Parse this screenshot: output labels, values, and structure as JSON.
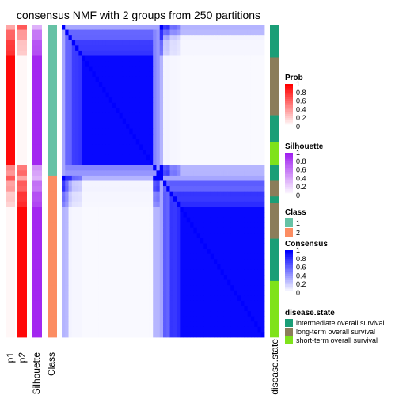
{
  "chart_data": {
    "type": "heatmap",
    "title": "consensus NMF with 2 groups from 250 partitions",
    "annotation_columns": [
      "p1",
      "p2",
      "Silhouette",
      "Class"
    ],
    "right_annotation": "disease.state",
    "class_blocks": [
      {
        "class": "1",
        "size_fraction": 0.485
      },
      {
        "class": "2",
        "size_fraction": 0.515
      }
    ],
    "disease_state_segments": [
      {
        "state": "intermediate overall survival",
        "size_fraction": 0.105
      },
      {
        "state": "long-term overall survival",
        "size_fraction": 0.185
      },
      {
        "state": "intermediate overall survival",
        "size_fraction": 0.085
      },
      {
        "state": "short-term overall survival",
        "size_fraction": 0.075
      },
      {
        "state": "intermediate overall survival",
        "size_fraction": 0.05
      },
      {
        "state": "long-term overall survival",
        "size_fraction": 0.05
      },
      {
        "state": "intermediate overall survival",
        "size_fraction": 0.02
      },
      {
        "state": "long-term overall survival",
        "size_fraction": 0.115
      },
      {
        "state": "intermediate overall survival",
        "size_fraction": 0.135
      },
      {
        "state": "short-term overall survival",
        "size_fraction": 0.18
      }
    ],
    "legends": {
      "prob": {
        "title": "Prob",
        "ticks": [
          "1",
          "0.8",
          "0.6",
          "0.4",
          "0.2",
          "0"
        ],
        "low": "#ffffff",
        "high": "#ff0000"
      },
      "silhouette": {
        "title": "Silhouette",
        "ticks": [
          "1",
          "0.8",
          "0.6",
          "0.4",
          "0.2",
          "0"
        ],
        "low": "#ffffff",
        "high": "#a020f0"
      },
      "class": {
        "title": "Class",
        "items": [
          {
            "label": "1",
            "color": "#66c2a5"
          },
          {
            "label": "2",
            "color": "#fc8d62"
          }
        ]
      },
      "consensus": {
        "title": "Consensus",
        "ticks": [
          "1",
          "0.8",
          "0.6",
          "0.4",
          "0.2",
          "0"
        ],
        "low": "#ffffff",
        "high": "#0000ff"
      },
      "disease_state": {
        "title": "disease.state",
        "items": [
          {
            "label": "intermediate overall survival",
            "color": "#1b9e77"
          },
          {
            "label": "long-term overall survival",
            "color": "#8b7d5a"
          },
          {
            "label": "short-term overall survival",
            "color": "#7fe21b"
          }
        ]
      }
    },
    "colors": {
      "consensus_high": "#0000ff",
      "prob_high": "#ff0000",
      "silhouette_high": "#a020f0"
    }
  }
}
